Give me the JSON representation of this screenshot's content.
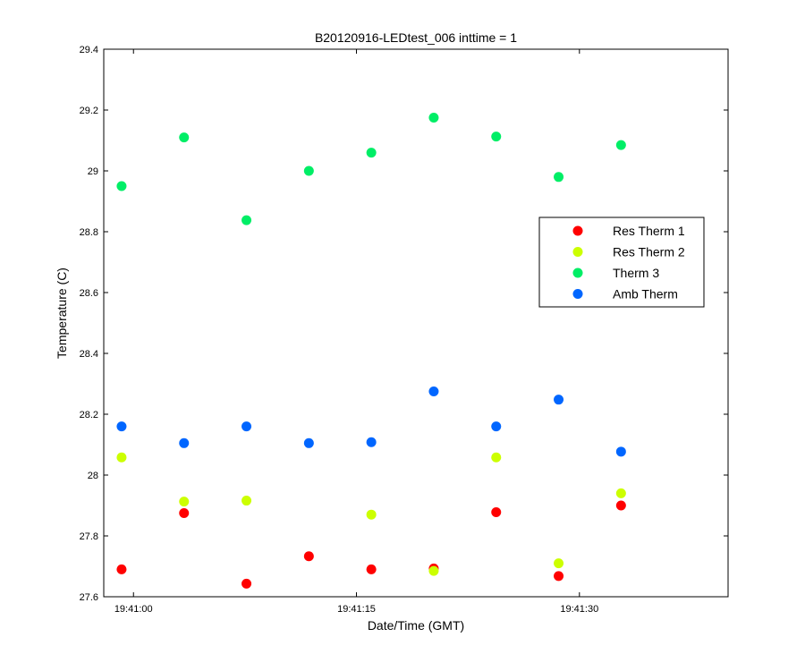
{
  "chart_data": {
    "type": "scatter",
    "title": "B20120916-LEDtest_006 inttime = 1",
    "xlabel": "Date/Time (GMT)",
    "ylabel": "Temperature (C)",
    "x_unit": "time of day (GMT)",
    "xlim": [
      "19:40:58",
      "19:41:40"
    ],
    "ylim": [
      27.6,
      29.4
    ],
    "x_ticks": [
      "19:41:00",
      "19:41:15",
      "19:41:30"
    ],
    "y_ticks": [
      "27.6",
      "27.8",
      "28",
      "28.2",
      "28.4",
      "28.6",
      "28.8",
      "29",
      "29.2",
      "29.4"
    ],
    "grid": false,
    "legend_position": "upper-right (inside)",
    "x": [
      "19:40:59.2",
      "19:41:03.4",
      "19:41:07.6",
      "19:41:11.8",
      "19:41:16.0",
      "19:41:20.2",
      "19:41:24.4",
      "19:41:28.6",
      "19:41:32.8"
    ],
    "series": [
      {
        "name": "Res Therm 1",
        "color": "#ff0000",
        "y": [
          27.69,
          27.875,
          27.643,
          27.733,
          27.69,
          27.693,
          27.878,
          27.668,
          27.9
        ]
      },
      {
        "name": "Res Therm 2",
        "color": "#ccff00",
        "y": [
          28.058,
          27.913,
          27.916,
          null,
          27.87,
          27.685,
          28.058,
          27.71,
          27.94
        ]
      },
      {
        "name": "Therm 3",
        "color": "#00ee66",
        "y": [
          28.95,
          29.11,
          28.838,
          29.0,
          29.06,
          29.175,
          29.113,
          28.98,
          29.085
        ]
      },
      {
        "name": "Amb Therm",
        "color": "#0066ff",
        "y": [
          28.16,
          28.105,
          28.16,
          28.105,
          28.108,
          28.275,
          28.16,
          28.248,
          28.077
        ]
      }
    ]
  }
}
